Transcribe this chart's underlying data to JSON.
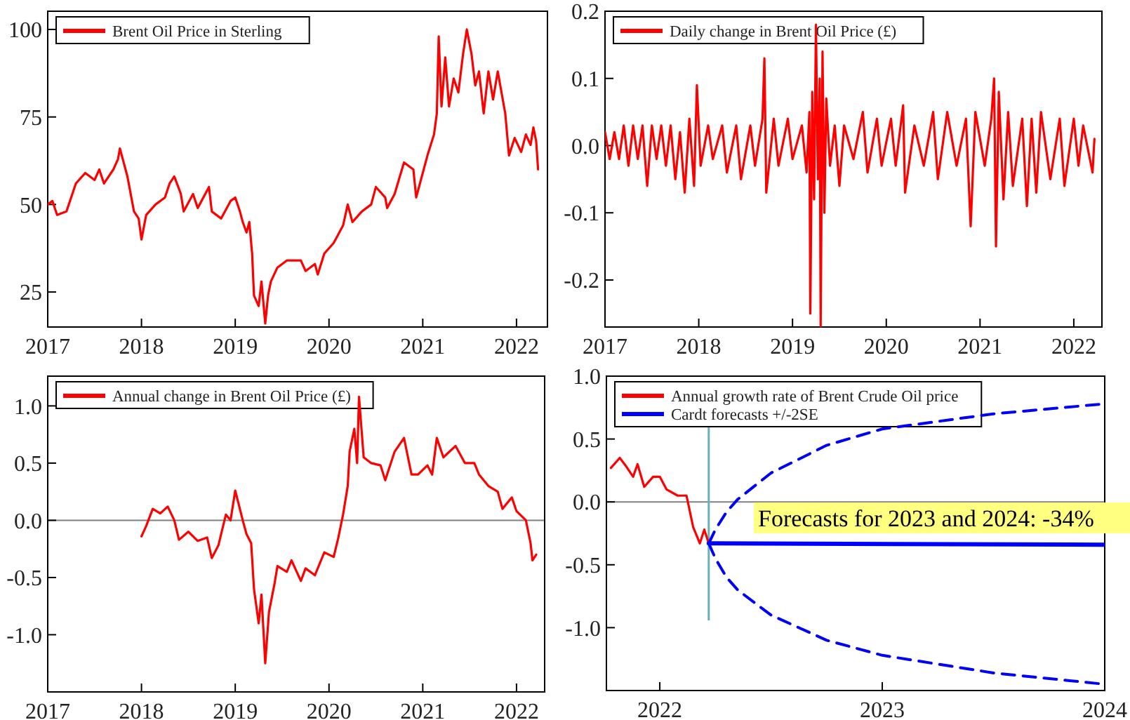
{
  "chart_data": [
    {
      "type": "line",
      "xlim": [
        2017,
        2022.33
      ],
      "ylim": [
        15,
        105.2
      ],
      "xticks": [
        2017,
        2018,
        2019,
        2020,
        2021,
        2022
      ],
      "yticks": [
        25,
        50,
        75,
        100
      ],
      "legend": "top left",
      "series": [
        {
          "name": "Brent Oil Price in Sterling",
          "color": "#ff0000",
          "x": [
            2017.0,
            2017.05,
            2017.1,
            2017.2,
            2017.3,
            2017.4,
            2017.5,
            2017.55,
            2017.6,
            2017.7,
            2017.75,
            2017.77,
            2017.85,
            2017.92,
            2017.97,
            2018.0,
            2018.05,
            2018.15,
            2018.25,
            2018.3,
            2018.35,
            2018.42,
            2018.45,
            2018.55,
            2018.6,
            2018.72,
            2018.75,
            2018.85,
            2018.95,
            2019.0,
            2019.05,
            2019.08,
            2019.12,
            2019.15,
            2019.18,
            2019.2,
            2019.25,
            2019.28,
            2019.3,
            2019.32,
            2019.35,
            2019.38,
            2019.45,
            2019.55,
            2019.7,
            2019.75,
            2019.85,
            2019.88,
            2019.95,
            2020.05,
            2020.15,
            2020.2,
            2020.25,
            2020.35,
            2020.45,
            2020.5,
            2020.6,
            2020.62,
            2020.7,
            2020.8,
            2020.9,
            2020.93,
            2020.98,
            2021.05,
            2021.12,
            2021.15,
            2021.17,
            2021.2,
            2021.24,
            2021.28,
            2021.33,
            2021.38,
            2021.43,
            2021.47,
            2021.52,
            2021.56,
            2021.6,
            2021.65,
            2021.7,
            2021.75,
            2021.8,
            2021.88,
            2021.92,
            2021.98,
            2022.05,
            2022.1,
            2022.15,
            2022.18,
            2022.21,
            2022.23
          ],
          "values": [
            50,
            51,
            47,
            48,
            56,
            59,
            57,
            60,
            56,
            60,
            63,
            66,
            58,
            48,
            46,
            40,
            47,
            50,
            52,
            56,
            58,
            53,
            48,
            53,
            49,
            55,
            48,
            46,
            51,
            52,
            48,
            45,
            42,
            45,
            36,
            24,
            21,
            28,
            22,
            16,
            24,
            28,
            32,
            34,
            34,
            31,
            33,
            30,
            36,
            39,
            44,
            50,
            45,
            48,
            50,
            55,
            52,
            49,
            53,
            62,
            60,
            52,
            57,
            64,
            70,
            76,
            98,
            78,
            92,
            78,
            86,
            82,
            93,
            100,
            93,
            84,
            88,
            76,
            88,
            80,
            88,
            76,
            64,
            69,
            65,
            70,
            67,
            72,
            68,
            60
          ]
        }
      ]
    },
    {
      "type": "line",
      "xlim": [
        2017,
        2022.3
      ],
      "ylim": [
        -0.27,
        0.2
      ],
      "xticks": [
        2017,
        2018,
        2019,
        2020,
        2021,
        2022
      ],
      "yticks": [
        {
          "value": -0.2,
          "label": "-0.2"
        },
        {
          "value": -0.1,
          "label": "-0.1"
        },
        {
          "value": 0,
          "label": "0.0"
        },
        0.1,
        0.2
      ],
      "legend": "top left",
      "series": [
        {
          "name": "Daily change in Brent Oil Price (£)",
          "color": "#ff0000",
          "x": [
            2017.0,
            2017.05,
            2017.1,
            2017.15,
            2017.2,
            2017.25,
            2017.3,
            2017.35,
            2017.4,
            2017.45,
            2017.5,
            2017.55,
            2017.6,
            2017.65,
            2017.7,
            2017.75,
            2017.8,
            2017.85,
            2017.9,
            2017.95,
            2017.98,
            2018.02,
            2018.1,
            2018.15,
            2018.25,
            2018.3,
            2018.4,
            2018.45,
            2018.55,
            2018.6,
            2018.68,
            2018.7,
            2018.72,
            2018.8,
            2018.85,
            2018.95,
            2019.0,
            2019.1,
            2019.15,
            2019.18,
            2019.19,
            2019.21,
            2019.23,
            2019.25,
            2019.27,
            2019.29,
            2019.3,
            2019.32,
            2019.34,
            2019.36,
            2019.4,
            2019.45,
            2019.5,
            2019.55,
            2019.65,
            2019.75,
            2019.8,
            2019.9,
            2019.95,
            2020.05,
            2020.1,
            2020.18,
            2020.2,
            2020.3,
            2020.4,
            2020.5,
            2020.55,
            2020.65,
            2020.75,
            2020.85,
            2020.9,
            2020.95,
            2021.05,
            2021.12,
            2021.15,
            2021.17,
            2021.2,
            2021.25,
            2021.3,
            2021.35,
            2021.45,
            2021.5,
            2021.55,
            2021.6,
            2021.65,
            2021.75,
            2021.85,
            2021.9,
            2022.0,
            2022.05,
            2022.1,
            2022.2,
            2022.22
          ],
          "values": [
            0.02,
            -0.02,
            0.02,
            -0.02,
            0.03,
            -0.03,
            0.03,
            -0.02,
            0.03,
            -0.06,
            0.03,
            -0.02,
            0.03,
            -0.03,
            0.03,
            -0.05,
            0.02,
            -0.07,
            0.04,
            -0.06,
            0.09,
            -0.03,
            0.03,
            -0.02,
            0.03,
            -0.04,
            0.03,
            -0.05,
            0.03,
            -0.03,
            0.04,
            0.13,
            -0.07,
            0.04,
            -0.03,
            0.04,
            -0.02,
            0.03,
            -0.04,
            0.05,
            -0.25,
            0.08,
            -0.08,
            0.18,
            -0.05,
            0.1,
            -0.27,
            0.14,
            -0.1,
            0.07,
            -0.03,
            0.03,
            -0.06,
            0.03,
            -0.02,
            0.05,
            -0.04,
            0.04,
            -0.03,
            0.04,
            -0.03,
            0.06,
            -0.07,
            0.03,
            -0.03,
            0.05,
            -0.05,
            0.05,
            -0.03,
            0.04,
            -0.12,
            0.05,
            -0.03,
            0.04,
            0.1,
            -0.15,
            0.08,
            -0.08,
            0.05,
            -0.06,
            0.04,
            -0.09,
            0.04,
            -0.07,
            0.05,
            -0.05,
            0.04,
            -0.06,
            0.04,
            -0.03,
            0.03,
            -0.04,
            0.01
          ]
        }
      ]
    },
    {
      "type": "line",
      "xlim": [
        2017,
        2022.3
      ],
      "ylim": [
        -1.5,
        1.26
      ],
      "xticks": [
        2017,
        2018,
        2019,
        2020,
        2021,
        2022
      ],
      "yticks": [
        {
          "value": -1,
          "label": "-1.0"
        },
        {
          "value": -0.5,
          "label": "-0.5"
        },
        {
          "value": 0,
          "label": "0.0"
        },
        0.5,
        {
          "value": 1,
          "label": "1.0"
        }
      ],
      "legend": "top left",
      "ref_lines": [
        {
          "axis": "y",
          "value": 0,
          "color": "#808080"
        }
      ],
      "series": [
        {
          "name": "Annual change in Brent Oil Price (£)",
          "color": "#ff0000",
          "x": [
            2018.0,
            2018.05,
            2018.12,
            2018.2,
            2018.28,
            2018.35,
            2018.4,
            2018.5,
            2018.6,
            2018.7,
            2018.75,
            2018.82,
            2018.9,
            2018.95,
            2019.0,
            2019.08,
            2019.12,
            2019.17,
            2019.2,
            2019.25,
            2019.28,
            2019.32,
            2019.36,
            2019.42,
            2019.45,
            2019.55,
            2019.6,
            2019.7,
            2019.75,
            2019.85,
            2019.95,
            2020.05,
            2020.1,
            2020.15,
            2020.2,
            2020.22,
            2020.27,
            2020.3,
            2020.32,
            2020.37,
            2020.45,
            2020.55,
            2020.6,
            2020.7,
            2020.8,
            2020.88,
            2020.95,
            2021.05,
            2021.1,
            2021.15,
            2021.22,
            2021.35,
            2021.45,
            2021.55,
            2021.6,
            2021.7,
            2021.8,
            2021.85,
            2021.95,
            2022.0,
            2022.1,
            2022.15,
            2022.17,
            2022.21
          ],
          "values": [
            -0.14,
            -0.05,
            0.1,
            0.06,
            0.12,
            0.0,
            -0.17,
            -0.1,
            -0.18,
            -0.15,
            -0.33,
            -0.22,
            0.05,
            0.0,
            0.26,
            0.0,
            -0.12,
            -0.2,
            -0.6,
            -0.9,
            -0.65,
            -1.25,
            -0.8,
            -0.55,
            -0.4,
            -0.45,
            -0.35,
            -0.53,
            -0.42,
            -0.48,
            -0.28,
            -0.32,
            -0.15,
            0.05,
            0.3,
            0.6,
            0.8,
            0.5,
            1.08,
            0.55,
            0.5,
            0.48,
            0.35,
            0.6,
            0.72,
            0.4,
            0.4,
            0.48,
            0.4,
            0.72,
            0.55,
            0.65,
            0.5,
            0.5,
            0.4,
            0.3,
            0.25,
            0.1,
            0.2,
            0.08,
            0.0,
            -0.2,
            -0.35,
            -0.3
          ]
        }
      ]
    },
    {
      "type": "line",
      "xlim": [
        2021.76,
        2024
      ],
      "ylim": [
        -1.5,
        1.0
      ],
      "xticks": [
        2022,
        2023,
        2024
      ],
      "yticks": [
        {
          "value": -1,
          "label": "-1.0"
        },
        {
          "value": -0.5,
          "label": "-0.5"
        },
        {
          "value": 0,
          "label": "0.0"
        },
        0.5,
        {
          "value": 1,
          "label": "1.0"
        }
      ],
      "legend": "top left",
      "ref_lines": [
        {
          "axis": "y",
          "value": 0,
          "color": "#808080"
        },
        {
          "axis": "x",
          "value": 2022.22,
          "color": "#66b2b2"
        }
      ],
      "annotations": [
        "Forecasts for 2023 and 2024: -34%"
      ],
      "series": [
        {
          "name": "Annual growth rate of Brent Crude Oil price",
          "color": "#ff0000",
          "x": [
            2021.78,
            2021.82,
            2021.85,
            2021.88,
            2021.9,
            2021.93,
            2021.97,
            2022.0,
            2022.03,
            2022.08,
            2022.12,
            2022.15,
            2022.18,
            2022.2,
            2022.22
          ],
          "values": [
            0.27,
            0.35,
            0.28,
            0.2,
            0.3,
            0.12,
            0.2,
            0.2,
            0.1,
            0.05,
            0.05,
            -0.2,
            -0.33,
            -0.22,
            -0.33
          ]
        },
        {
          "name": "Cardt forecasts +/-2SE",
          "color": "#0000ff",
          "x": [
            2022.22,
            2024
          ],
          "values": [
            -0.33,
            -0.34
          ]
        },
        {
          "color": "#0000ff",
          "line_style": "dashed",
          "x": [
            2022.22,
            2022.25,
            2022.3,
            2022.35,
            2022.5,
            2022.75,
            2023,
            2023.5,
            2024
          ],
          "values": [
            -0.33,
            -0.22,
            -0.08,
            0.02,
            0.23,
            0.45,
            0.58,
            0.7,
            0.78
          ]
        },
        {
          "color": "#0000ff",
          "line_style": "dashed",
          "x": [
            2022.22,
            2022.25,
            2022.3,
            2022.35,
            2022.5,
            2022.75,
            2023,
            2023.5,
            2024
          ],
          "values": [
            -0.33,
            -0.45,
            -0.6,
            -0.7,
            -0.9,
            -1.1,
            -1.22,
            -1.36,
            -1.45
          ]
        }
      ]
    }
  ]
}
